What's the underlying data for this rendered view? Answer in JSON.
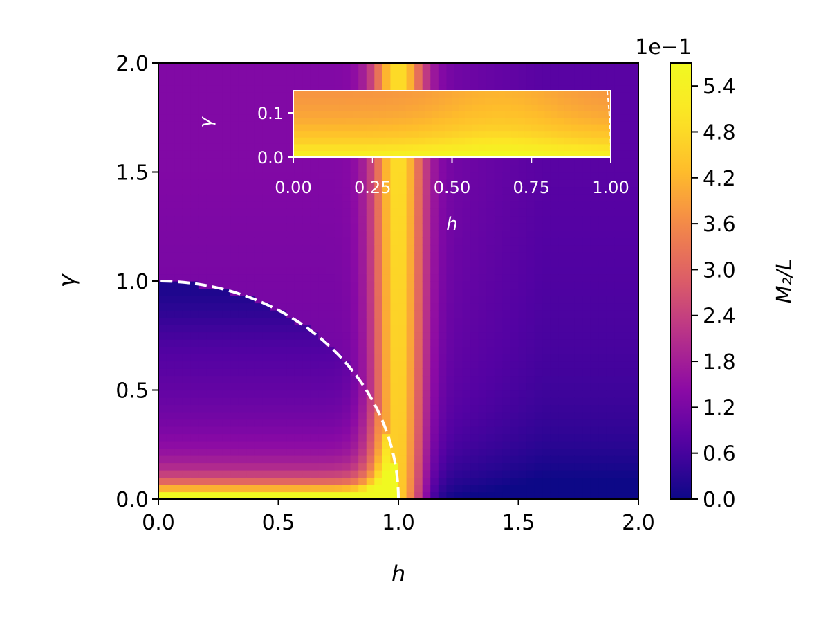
{
  "chart_data": {
    "type": "heatmap",
    "main": {
      "xlabel": "h",
      "ylabel": "γ",
      "xlim": [
        0,
        2
      ],
      "ylim": [
        0,
        2
      ],
      "xticks": [
        "0.0",
        "0.5",
        "1.0",
        "1.5",
        "2.0"
      ],
      "yticks": [
        "0.0",
        "0.5",
        "1.0",
        "1.5",
        "2.0"
      ],
      "colormap": "plasma",
      "boundary_curve": {
        "equation": "h^2 + γ^2 = 1",
        "style": "dashed",
        "color": "#ffffff"
      },
      "field_features": [
        {
          "region": "h < 1, γ ≈ 0",
          "level": "maximum (≈0.57)"
        },
        {
          "region": "h = 1 vertical line",
          "level": "high (≈0.45)"
        },
        {
          "region": "h ≈ 0, γ ≈ 1",
          "level": "low (≈0.05)"
        },
        {
          "region": "h > 1, γ ≈ 0",
          "level": "minimum (≈0)"
        }
      ]
    },
    "inset": {
      "xlabel": "h",
      "ylabel": "γ",
      "xlim": [
        0,
        1
      ],
      "ylim": [
        0,
        0.15
      ],
      "xticks": [
        "0.00",
        "0.25",
        "0.50",
        "0.75",
        "1.00"
      ],
      "yticks": [
        "0.0",
        "0.1"
      ],
      "boundary_curve": {
        "equation": "h^2 + γ^2 = 1",
        "style": "dashed",
        "color": "#ffffff"
      }
    },
    "colorbar": {
      "label": "M₂/L",
      "multiplier": "1e−1",
      "range": [
        0,
        0.57
      ],
      "ticks": [
        "0.0",
        "0.6",
        "1.2",
        "1.8",
        "2.4",
        "3.0",
        "3.6",
        "4.2",
        "4.8",
        "5.4"
      ],
      "tick_values": [
        0.0,
        0.6,
        1.2,
        1.8,
        2.4,
        3.0,
        3.6,
        4.2,
        4.8,
        5.4
      ]
    }
  }
}
